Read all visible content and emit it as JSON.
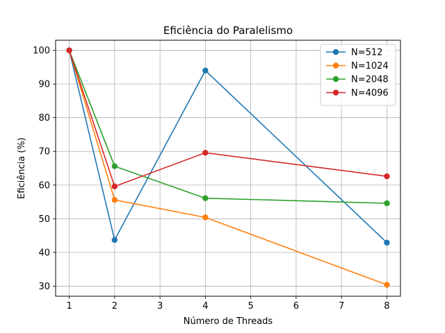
{
  "chart_data": {
    "type": "line",
    "title": "Eficiência do Paralelismo",
    "xlabel": "Número de Threads",
    "ylabel": "Eficiência (%)",
    "x": [
      1,
      2,
      4,
      8
    ],
    "xlim": [
      0.7,
      8.3
    ],
    "ylim": [
      27,
      103
    ],
    "xticks": [
      1,
      2,
      3,
      4,
      5,
      6,
      7,
      8
    ],
    "yticks": [
      30,
      40,
      50,
      60,
      70,
      80,
      90,
      100
    ],
    "grid": true,
    "legend_position": "top-right",
    "series": [
      {
        "name": "N=512",
        "color": "#1f77b4",
        "values": [
          100,
          43.7,
          94.0,
          42.9
        ]
      },
      {
        "name": "N=1024",
        "color": "#ff7f0e",
        "values": [
          100,
          55.6,
          50.4,
          30.4
        ]
      },
      {
        "name": "N=2048",
        "color": "#2ca02c",
        "values": [
          100,
          65.6,
          56.1,
          54.6
        ]
      },
      {
        "name": "N=4096",
        "color": "#d62728",
        "values": [
          100,
          59.6,
          69.6,
          62.6
        ]
      }
    ]
  }
}
